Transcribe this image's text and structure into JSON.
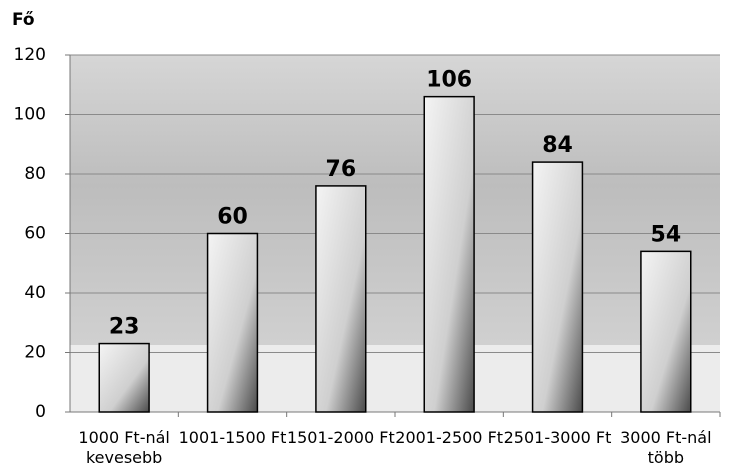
{
  "chart_data": {
    "type": "bar",
    "y_label": "Fő",
    "categories": [
      "1000 Ft-nál kevesebb",
      "1001-1500 Ft",
      "1501-2000 Ft",
      "2001-2500 Ft",
      "2501-3000 Ft",
      "3000 Ft-nál több"
    ],
    "values": [
      23,
      60,
      76,
      106,
      84,
      54
    ],
    "ylim": [
      0,
      120
    ],
    "yticks": [
      0,
      20,
      40,
      60,
      80,
      100,
      120
    ],
    "grid": true
  }
}
